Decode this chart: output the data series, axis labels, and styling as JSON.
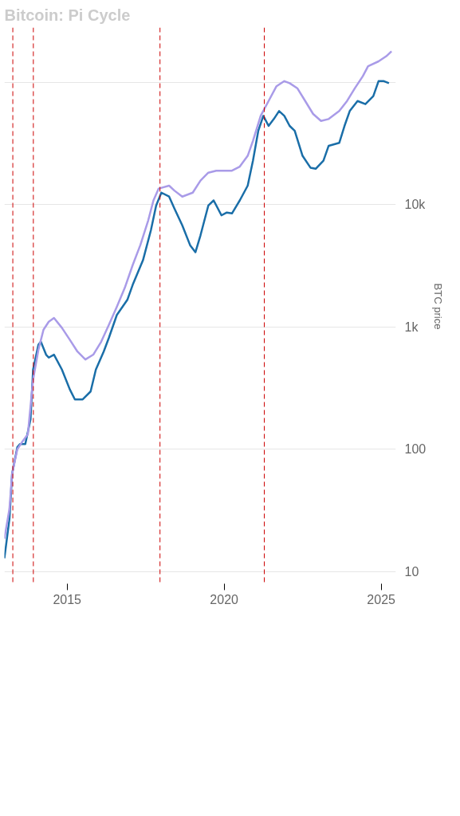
{
  "chart_data": {
    "type": "line",
    "title": "Bitcoin: Pi Cycle",
    "ylabel": "BTC price",
    "log": "y",
    "grid": "y",
    "marker": "none",
    "line_style": "solid",
    "xlim": [
      "2013-01-01",
      "2025-06-20"
    ],
    "xticks": [
      "2015",
      "2020",
      "2025"
    ],
    "ylim": [
      7.7,
      280000
    ],
    "yticks": [
      10,
      100,
      {
        "value": 1000,
        "label": "1k"
      },
      {
        "value": 10000,
        "label": "10k"
      },
      {
        "value": 100000,
        "label": null
      }
    ],
    "ref_lines": [
      {
        "axis": "x",
        "value": "2013-04-09",
        "color": "#cc0000",
        "line_style": "dashed"
      },
      {
        "axis": "x",
        "value": "2013-12-04",
        "color": "#cc0000",
        "line_style": "dashed"
      },
      {
        "axis": "x",
        "value": "2017-12-16",
        "color": "#cc0000",
        "line_style": "dashed"
      },
      {
        "axis": "x",
        "value": "2021-04-12",
        "color": "#cc0000",
        "line_style": "dashed"
      }
    ],
    "series": [
      {
        "color": "#1a6ea8",
        "x": [
          "2013-01",
          "2013-03",
          "2013-04",
          "2013-06",
          "2013-07",
          "2013-09",
          "2013-11",
          "2013-12",
          "2014-02",
          "2014-03",
          "2014-05",
          "2014-06",
          "2014-08",
          "2014-11",
          "2015-02",
          "2015-04",
          "2015-07",
          "2015-10",
          "2015-12",
          "2016-03",
          "2016-05",
          "2016-08",
          "2016-12",
          "2017-02",
          "2017-06",
          "2017-09",
          "2017-11",
          "2018-01",
          "2018-04",
          "2018-06",
          "2018-09",
          "2018-12",
          "2019-02",
          "2019-04",
          "2019-07",
          "2019-09",
          "2019-12",
          "2020-02",
          "2020-04",
          "2020-07",
          "2020-10",
          "2020-12",
          "2021-02",
          "2021-04",
          "2021-06",
          "2021-08",
          "2021-10",
          "2021-12",
          "2022-02",
          "2022-04",
          "2022-07",
          "2022-10",
          "2022-12",
          "2023-03",
          "2023-05",
          "2023-09",
          "2023-11",
          "2024-01",
          "2024-04",
          "2024-07",
          "2024-10",
          "2024-12",
          "2025-02",
          "2025-04"
        ],
        "values": [
          12.8,
          27,
          63,
          104,
          110,
          110,
          175,
          447,
          714,
          755,
          592,
          560,
          592,
          447,
          308,
          255,
          255,
          296,
          447,
          627,
          815,
          1250,
          1660,
          2200,
          3500,
          6150,
          9800,
          12500,
          11600,
          9300,
          6750,
          4650,
          4070,
          5600,
          9800,
          10800,
          8150,
          8600,
          8450,
          10800,
          14250,
          22800,
          40000,
          53000,
          43900,
          50000,
          58100,
          53000,
          43900,
          40000,
          25000,
          20000,
          19600,
          22800,
          30200,
          31900,
          43900,
          58100,
          70200,
          66200,
          76900,
          102000,
          102000,
          98200
        ]
      },
      {
        "color": "#a99be8",
        "x": [
          "2013-01",
          "2013-03",
          "2013-04",
          "2013-06",
          "2013-08",
          "2013-10",
          "2013-12",
          "2014-02",
          "2014-04",
          "2014-06",
          "2014-08",
          "2014-11",
          "2015-02",
          "2015-05",
          "2015-08",
          "2015-11",
          "2016-02",
          "2016-05",
          "2016-08",
          "2016-11",
          "2017-02",
          "2017-05",
          "2017-08",
          "2017-10",
          "2017-12",
          "2018-04",
          "2018-06",
          "2018-09",
          "2019-01",
          "2019-04",
          "2019-07",
          "2019-10",
          "2020-01",
          "2020-04",
          "2020-07",
          "2020-10",
          "2020-12",
          "2021-03",
          "2021-06",
          "2021-09",
          "2021-12",
          "2022-02",
          "2022-05",
          "2022-08",
          "2022-11",
          "2023-02",
          "2023-05",
          "2023-09",
          "2023-12",
          "2024-03",
          "2024-06",
          "2024-08",
          "2024-12",
          "2025-03",
          "2025-05"
        ],
        "values": [
          18.5,
          32.5,
          63,
          100,
          116,
          132,
          371,
          650,
          946,
          1100,
          1180,
          981,
          784,
          627,
          540,
          592,
          755,
          1040,
          1460,
          2080,
          3190,
          4650,
          7420,
          10800,
          13500,
          14250,
          13000,
          11600,
          12500,
          15700,
          18200,
          18900,
          18900,
          18900,
          20400,
          25000,
          33100,
          53000,
          70200,
          92700,
          102000,
          98200,
          89300,
          70200,
          55000,
          48200,
          50000,
          58100,
          70200,
          89300,
          112000,
          135000,
          148000,
          163000,
          179000
        ]
      }
    ]
  }
}
